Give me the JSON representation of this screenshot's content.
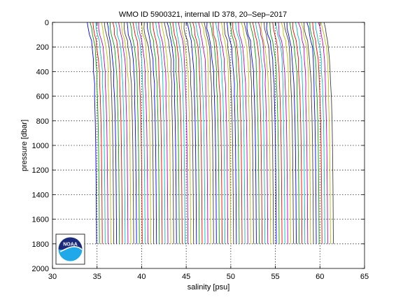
{
  "chart_data": {
    "type": "line",
    "title": "WMO ID 5900321, internal ID 378, 20–Sep–2017",
    "xlabel": "salinity [psu]",
    "ylabel": "pressure [dbar]",
    "xlim": [
      30,
      65
    ],
    "ylim": [
      0,
      2000
    ],
    "y_reversed": true,
    "x_ticks": [
      30,
      35,
      40,
      45,
      50,
      55,
      60,
      65
    ],
    "y_ticks": [
      0,
      200,
      400,
      600,
      800,
      1000,
      1200,
      1400,
      1600,
      1800,
      2000
    ],
    "x_tick_labels": [
      "30",
      "35",
      "40",
      "45",
      "50",
      "55",
      "60",
      "65"
    ],
    "y_tick_labels": [
      "0",
      "200",
      "400",
      "600",
      "800",
      "1000",
      "1200",
      "1400",
      "1600",
      "1800",
      "2000"
    ],
    "grid": true,
    "series_colors": [
      "#0000ff",
      "#00a000",
      "#ff0000",
      "#00bfbf",
      "#bf00bf",
      "#bfbf00",
      "#404040"
    ],
    "profiles": {
      "count": 84,
      "first_offset_psu": 0,
      "spacing_psu": 0.32,
      "pressure": [
        0,
        50,
        100,
        150,
        200,
        300,
        400,
        500,
        600,
        800,
        1000,
        1200,
        1400,
        1600,
        1800
      ],
      "base_salinity": [
        33.9,
        34.0,
        34.1,
        34.3,
        34.4,
        34.55,
        34.63,
        34.68,
        34.72,
        34.8,
        34.85,
        34.88,
        34.91,
        34.93,
        34.95
      ]
    }
  },
  "logo": {
    "text": "NOAA",
    "icon": "noaa-logo-icon",
    "colors": {
      "navy": "#1b2a7a",
      "sky": "#1fa9e8",
      "white": "#ffffff"
    }
  }
}
